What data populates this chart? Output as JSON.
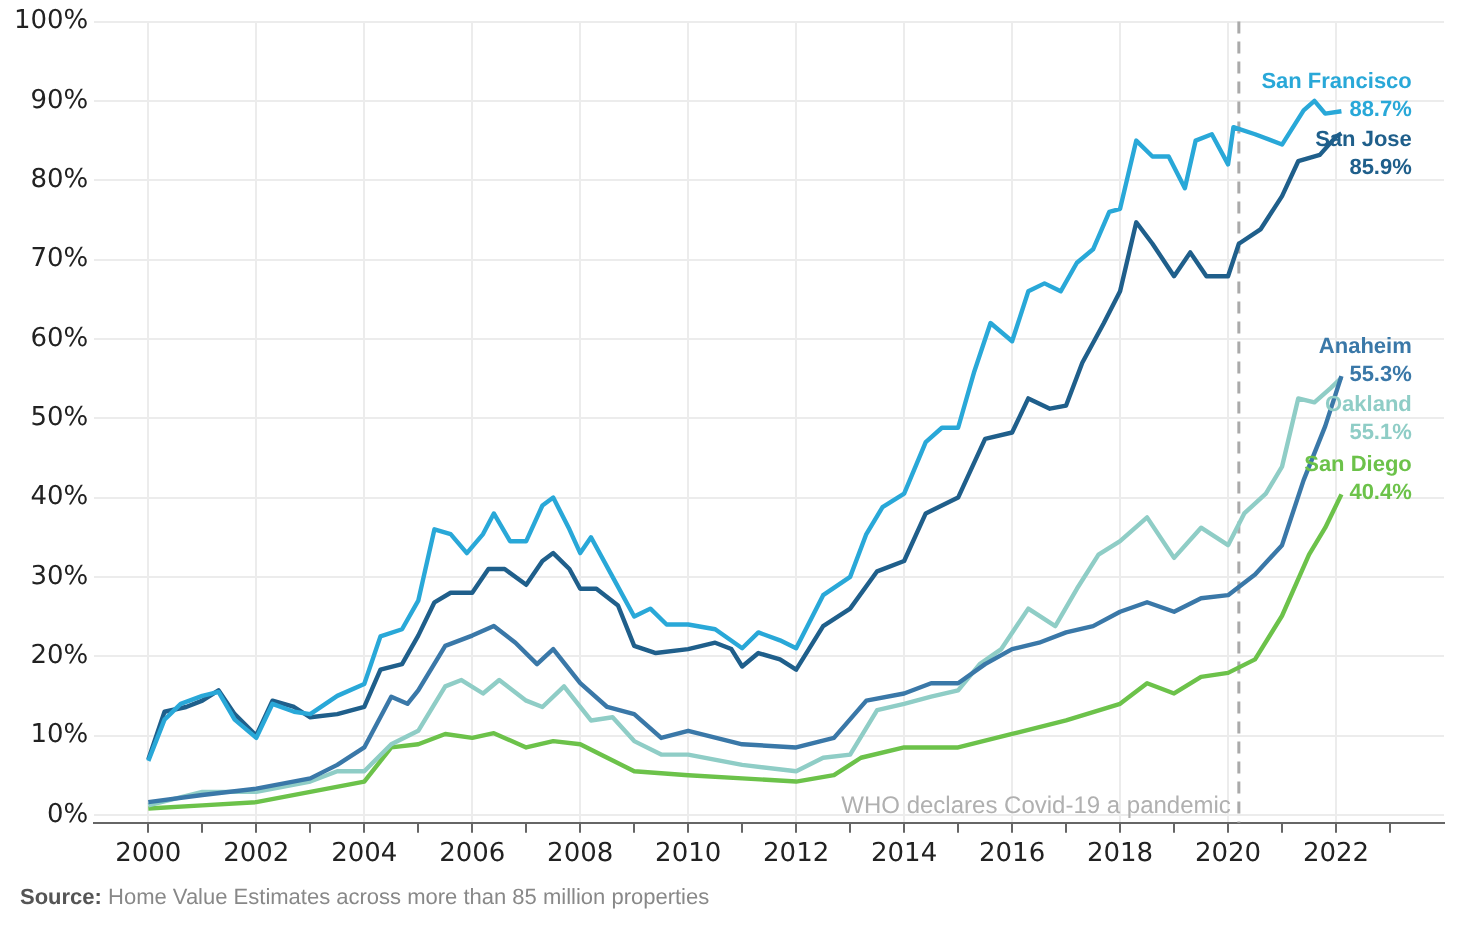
{
  "chart_data": {
    "type": "line",
    "xlim": [
      1999,
      2024
    ],
    "ylim": [
      -1,
      100
    ],
    "xticks": [
      2000,
      {
        "value": 2001,
        "label": null
      },
      2002,
      {
        "value": 2003,
        "label": null
      },
      2004,
      {
        "value": 2005,
        "label": null
      },
      2006,
      {
        "value": 2007,
        "label": null
      },
      2008,
      {
        "value": 2009,
        "label": null
      },
      2010,
      {
        "value": 2011,
        "label": null
      },
      2012,
      {
        "value": 2013,
        "label": null
      },
      2014,
      {
        "value": 2015,
        "label": null
      },
      2016,
      {
        "value": 2017,
        "label": null
      },
      2018,
      {
        "value": 2019,
        "label": null
      },
      2020,
      {
        "value": 2021,
        "label": null
      },
      2022,
      {
        "value": 2023,
        "label": null
      }
    ],
    "yticks": [
      {
        "value": 0,
        "label": "0%"
      },
      {
        "value": 10,
        "label": "10%"
      },
      {
        "value": 20,
        "label": "20%"
      },
      {
        "value": 30,
        "label": "30%"
      },
      {
        "value": 40,
        "label": "40%"
      },
      {
        "value": 50,
        "label": "50%"
      },
      {
        "value": 60,
        "label": "60%"
      },
      {
        "value": 70,
        "label": "70%"
      },
      {
        "value": 80,
        "label": "80%"
      },
      {
        "value": 90,
        "label": "90%"
      },
      {
        "value": 100,
        "label": "100%"
      }
    ],
    "grid": true,
    "legend": false,
    "marker": "none",
    "line_style": "solid",
    "series": [
      {
        "name": "San Francisco",
        "color": "#29a8d8",
        "x": [
          2000,
          2000.3,
          2000.6,
          2001,
          2001.3,
          2001.6,
          2002,
          2002.3,
          2002.7,
          2003,
          2003.5,
          2004,
          2004.3,
          2004.7,
          2005,
          2005.3,
          2005.6,
          2005.9,
          2006.2,
          2006.4,
          2006.7,
          2007,
          2007.3,
          2007.5,
          2007.8,
          2008,
          2008.2,
          2008.6,
          2009,
          2009.3,
          2009.6,
          2010,
          2010.5,
          2011,
          2011.3,
          2011.7,
          2012,
          2012.5,
          2013,
          2013.3,
          2013.6,
          2014,
          2014.4,
          2014.7,
          2015,
          2015.3,
          2015.6,
          2016,
          2016.3,
          2016.6,
          2016.9,
          2017.2,
          2017.5,
          2017.8,
          2018,
          2018.3,
          2018.6,
          2018.9,
          2019.2,
          2019.4,
          2019.7,
          2020,
          2020.1,
          2020.5,
          2021,
          2021.4,
          2021.6,
          2021.8,
          2022.1
        ],
        "values": [
          6.8,
          12,
          14,
          15,
          15.5,
          12,
          9.7,
          14,
          13,
          12.7,
          15,
          16.5,
          22.5,
          23.4,
          27,
          36,
          35.4,
          33,
          35.4,
          38,
          34.5,
          34.5,
          39,
          40,
          36,
          33,
          35,
          30,
          25,
          26,
          24,
          24,
          23.4,
          21,
          23,
          22,
          21,
          27.7,
          30,
          35.4,
          38.8,
          40.5,
          47,
          48.8,
          48.8,
          55.9,
          62,
          59.7,
          66,
          67,
          66,
          69.6,
          71.3,
          76,
          76.4,
          85,
          83,
          83,
          79,
          85,
          85.8,
          82,
          86.7,
          85.8,
          84.5,
          88.8,
          90,
          88.4,
          88.7
        ],
        "value_labels": [
          null,
          null,
          null,
          null,
          null,
          null,
          null,
          null,
          null,
          null,
          null,
          null,
          null,
          null,
          null,
          null,
          null,
          null,
          null,
          null,
          null,
          null,
          null,
          null,
          null,
          null,
          null,
          null,
          null,
          null,
          null,
          null,
          null,
          null,
          null,
          null,
          null,
          null,
          null,
          null,
          null,
          null,
          null,
          null,
          null,
          null,
          null,
          null,
          null,
          null,
          null,
          null,
          null,
          null,
          null,
          null,
          null,
          null,
          null,
          null,
          null,
          null,
          null,
          null,
          null,
          null,
          null,
          null,
          "88.7%"
        ]
      },
      {
        "name": "San Jose",
        "color": "#1f5f8b",
        "x": [
          2000,
          2000.3,
          2000.7,
          2001,
          2001.3,
          2001.6,
          2002,
          2002.3,
          2002.7,
          2003,
          2003.5,
          2004,
          2004.3,
          2004.7,
          2005,
          2005.3,
          2005.6,
          2006,
          2006.3,
          2006.6,
          2007,
          2007.3,
          2007.5,
          2007.8,
          2008,
          2008.3,
          2008.7,
          2009,
          2009.4,
          2010,
          2010.5,
          2010.8,
          2011,
          2011.3,
          2011.7,
          2012,
          2012.5,
          2013,
          2013.5,
          2014,
          2014.4,
          2015,
          2015.5,
          2016,
          2016.3,
          2016.7,
          2017,
          2017.3,
          2017.7,
          2018,
          2018.3,
          2018.6,
          2019,
          2019.3,
          2019.6,
          2020,
          2020.2,
          2020.6,
          2021,
          2021.3,
          2021.7,
          2022,
          2022.1
        ],
        "values": [
          7,
          13,
          13.6,
          14.4,
          15.7,
          12.7,
          10,
          14.4,
          13.6,
          12.3,
          12.7,
          13.6,
          18.3,
          19,
          22.6,
          26.8,
          28,
          28,
          31,
          31,
          29,
          32,
          33,
          31,
          28.5,
          28.5,
          26.4,
          21.3,
          20.4,
          20.9,
          21.7,
          20.9,
          18.7,
          20.4,
          19.6,
          18.3,
          23.8,
          26,
          30.7,
          32,
          38,
          40,
          47.4,
          48.2,
          52.5,
          51.2,
          51.6,
          57,
          62,
          66,
          74.7,
          72,
          67.9,
          70.9,
          67.9,
          67.9,
          72,
          73.8,
          78,
          82.4,
          83.2,
          85.5,
          85.9
        ],
        "value_labels": [
          null,
          null,
          null,
          null,
          null,
          null,
          null,
          null,
          null,
          null,
          null,
          null,
          null,
          null,
          null,
          null,
          null,
          null,
          null,
          null,
          null,
          null,
          null,
          null,
          null,
          null,
          null,
          null,
          null,
          null,
          null,
          null,
          null,
          null,
          null,
          null,
          null,
          null,
          null,
          null,
          null,
          null,
          null,
          null,
          null,
          null,
          null,
          null,
          null,
          null,
          null,
          null,
          null,
          null,
          null,
          null,
          null,
          null,
          null,
          null,
          null,
          null,
          "85.9%"
        ]
      },
      {
        "name": "Anaheim",
        "color": "#3a78a8",
        "x": [
          2000,
          2001,
          2002,
          2003,
          2003.5,
          2004,
          2004.5,
          2004.8,
          2005,
          2005.5,
          2006,
          2006.4,
          2006.8,
          2007.2,
          2007.5,
          2008,
          2008.5,
          2009,
          2009.5,
          2010,
          2011,
          2012,
          2012.7,
          2013.3,
          2014,
          2014.5,
          2015,
          2015.5,
          2016,
          2016.5,
          2017,
          2017.5,
          2018,
          2018.5,
          2019,
          2019.5,
          2020,
          2020.5,
          2021,
          2021.4,
          2021.8,
          2022.1
        ],
        "values": [
          1.6,
          2.5,
          3.3,
          4.6,
          6.3,
          8.5,
          14.9,
          14,
          15.7,
          21.3,
          22.6,
          23.8,
          21.7,
          19,
          20.9,
          16.6,
          13.6,
          12.7,
          9.7,
          10.6,
          8.9,
          8.5,
          9.7,
          14.4,
          15.3,
          16.6,
          16.6,
          19,
          20.9,
          21.7,
          23,
          23.8,
          25.6,
          26.8,
          25.6,
          27.3,
          27.7,
          30.3,
          34,
          42.2,
          49,
          55.3
        ],
        "value_labels": [
          null,
          null,
          null,
          null,
          null,
          null,
          null,
          null,
          null,
          null,
          null,
          null,
          null,
          null,
          null,
          null,
          null,
          null,
          null,
          null,
          null,
          null,
          null,
          null,
          null,
          null,
          null,
          null,
          null,
          null,
          null,
          null,
          null,
          null,
          null,
          null,
          null,
          null,
          null,
          null,
          null,
          "55.3%"
        ]
      },
      {
        "name": "Oakland",
        "color": "#8fcdc6",
        "x": [
          2000,
          2001,
          2002,
          2003,
          2003.5,
          2004,
          2004.5,
          2005,
          2005.5,
          2005.8,
          2006.2,
          2006.5,
          2007,
          2007.3,
          2007.7,
          2008.2,
          2008.6,
          2009,
          2009.5,
          2010,
          2011,
          2012,
          2012.5,
          2013,
          2013.5,
          2014,
          2014.5,
          2015,
          2015.4,
          2015.8,
          2016.3,
          2016.8,
          2017.2,
          2017.6,
          2018,
          2018.5,
          2019,
          2019.5,
          2020,
          2020.3,
          2020.7,
          2021,
          2021.3,
          2021.6,
          2021.9,
          2022.1
        ],
        "values": [
          1.2,
          2.9,
          2.9,
          4.2,
          5.5,
          5.5,
          8.9,
          10.6,
          16.2,
          17,
          15.3,
          17,
          14.4,
          13.6,
          16.2,
          11.9,
          12.3,
          9.3,
          7.6,
          7.6,
          6.3,
          5.5,
          7.2,
          7.6,
          13.2,
          14,
          14.9,
          15.7,
          19,
          20.9,
          26,
          23.8,
          28.5,
          32.8,
          34.5,
          37.5,
          32.4,
          36.2,
          34,
          38,
          40.5,
          43.9,
          52.5,
          52,
          53.8,
          55.1
        ],
        "value_labels": [
          null,
          null,
          null,
          null,
          null,
          null,
          null,
          null,
          null,
          null,
          null,
          null,
          null,
          null,
          null,
          null,
          null,
          null,
          null,
          null,
          null,
          null,
          null,
          null,
          null,
          null,
          null,
          null,
          null,
          null,
          null,
          null,
          null,
          null,
          null,
          null,
          null,
          null,
          null,
          null,
          null,
          null,
          null,
          null,
          null,
          "55.1%"
        ]
      },
      {
        "name": "San Diego",
        "color": "#6cc24a",
        "x": [
          2000,
          2001,
          2002,
          2003,
          2004,
          2004.5,
          2005,
          2005.5,
          2006,
          2006.4,
          2007,
          2007.5,
          2008,
          2008.5,
          2009,
          2010,
          2011,
          2012,
          2012.7,
          2013.2,
          2014,
          2015,
          2016,
          2017,
          2018,
          2018.5,
          2019,
          2019.5,
          2020,
          2020.5,
          2021,
          2021.5,
          2021.8,
          2022.1
        ],
        "values": [
          0.8,
          1.2,
          1.6,
          2.9,
          4.2,
          8.5,
          8.9,
          10.2,
          9.7,
          10.3,
          8.5,
          9.3,
          8.9,
          7.2,
          5.5,
          5,
          4.6,
          4.2,
          5,
          7.2,
          8.5,
          8.5,
          10.2,
          11.9,
          14,
          16.6,
          15.3,
          17.4,
          17.9,
          19.6,
          25.1,
          32.8,
          36.2,
          40.4
        ],
        "value_labels": [
          null,
          null,
          null,
          null,
          null,
          null,
          null,
          null,
          null,
          null,
          null,
          null,
          null,
          null,
          null,
          null,
          null,
          null,
          null,
          null,
          null,
          null,
          null,
          null,
          null,
          null,
          null,
          null,
          null,
          null,
          null,
          null,
          null,
          "40.4%"
        ]
      }
    ],
    "ref_lines": [
      {
        "axis": "x",
        "value": 2020.2,
        "label": "WHO declares Covid-19 a pandemic",
        "color": "#aaaaaa",
        "line_style": "dashed"
      }
    ],
    "annotations": [
      "Source: Home Value Estimates across more than 85 million properties"
    ]
  }
}
